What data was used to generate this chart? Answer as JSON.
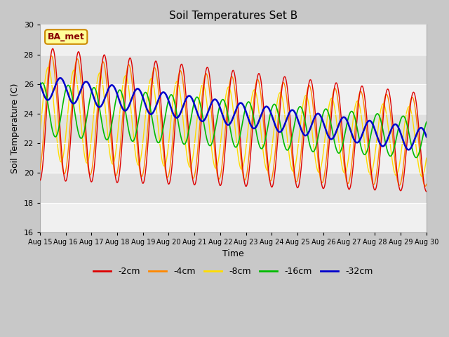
{
  "title": "Soil Temperatures Set B",
  "xlabel": "Time",
  "ylabel": "Soil Temperature (C)",
  "ylim": [
    16,
    30
  ],
  "xlim_days": [
    0,
    15
  ],
  "x_tick_labels": [
    "Aug 15",
    "Aug 16",
    "Aug 17",
    "Aug 18",
    "Aug 19",
    "Aug 20",
    "Aug 21",
    "Aug 22",
    "Aug 23",
    "Aug 24",
    "Aug 25",
    "Aug 26",
    "Aug 27",
    "Aug 28",
    "Aug 29",
    "Aug 30"
  ],
  "yticks": [
    16,
    18,
    20,
    22,
    24,
    26,
    28,
    30
  ],
  "colors": {
    "-2cm": "#dd0000",
    "-4cm": "#ff8800",
    "-8cm": "#ffdd00",
    "-16cm": "#00bb00",
    "-32cm": "#0000cc"
  },
  "legend_labels": [
    "-2cm",
    "-4cm",
    "-8cm",
    "-16cm",
    "-32cm"
  ],
  "annotation_text": "BA_met",
  "annotation_bg": "#ffff99",
  "annotation_border": "#cc8800",
  "title_fontsize": 11,
  "axis_fontsize": 9,
  "legend_fontsize": 9,
  "band_colors": [
    "#f0f0f0",
    "#e0e0e0"
  ],
  "fig_bg": "#c8c8c8",
  "plot_bg": "#e8e8e8"
}
